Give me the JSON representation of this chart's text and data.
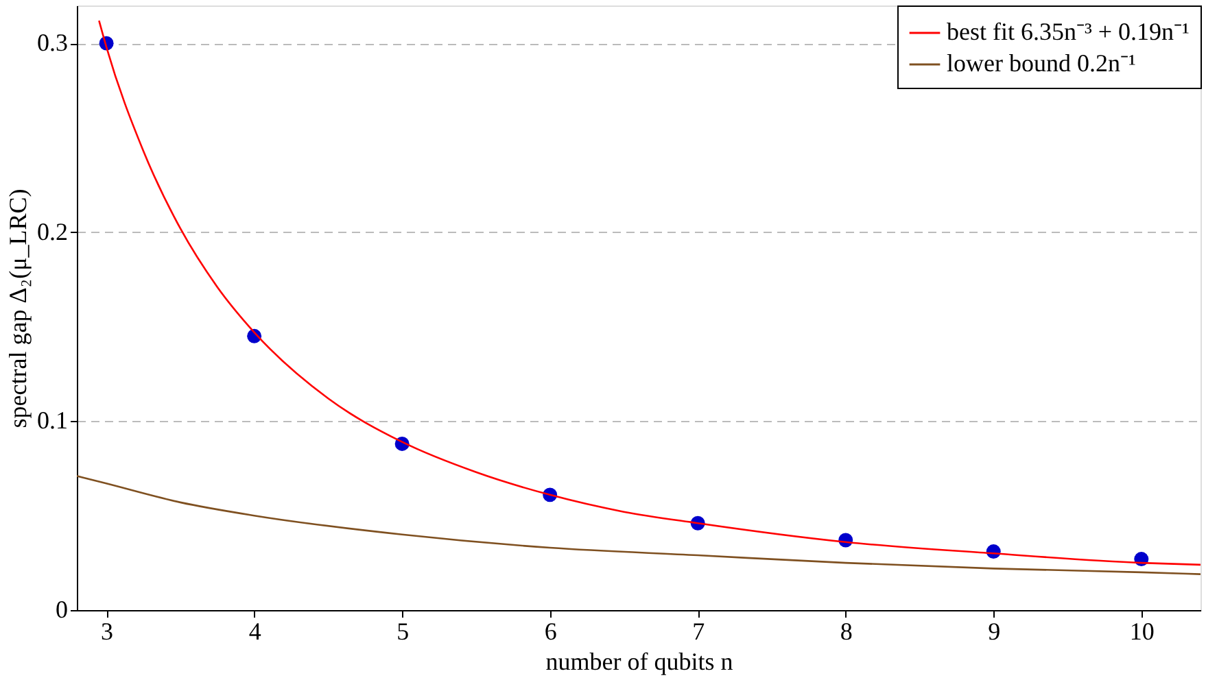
{
  "chart_data": {
    "type": "line",
    "xlabel": "number of qubits n",
    "ylabel": "spectral gap Δ₂(μ_LRC)",
    "xlim": [
      2.8,
      10.4
    ],
    "ylim": [
      0,
      0.32
    ],
    "xticks": [
      3,
      4,
      5,
      6,
      7,
      8,
      9,
      10
    ],
    "yticks": [
      0,
      0.1,
      0.2,
      0.3
    ],
    "grid": "y",
    "legend": "top right",
    "series": [
      {
        "type": "scatter",
        "marker": "circle",
        "color": "#0000cc",
        "x": [
          3,
          4,
          5,
          6,
          7,
          8,
          9,
          10
        ],
        "values": [
          0.3,
          0.145,
          0.088,
          0.061,
          0.046,
          0.037,
          0.031,
          0.027
        ]
      },
      {
        "name": "best fit 6.35n⁻³ + 0.19n⁻¹",
        "color": "#ff0000",
        "x": [
          2.95,
          3,
          3.25,
          3.5,
          3.75,
          4,
          4.5,
          5,
          5.5,
          6,
          6.5,
          7,
          8,
          9,
          10,
          10.4
        ],
        "values": [
          0.312,
          0.298,
          0.243,
          0.202,
          0.171,
          0.147,
          0.112,
          0.089,
          0.073,
          0.061,
          0.052,
          0.046,
          0.036,
          0.03,
          0.025,
          0.024
        ]
      },
      {
        "name": "lower bound 0.2n⁻¹",
        "color": "#7f5020",
        "x": [
          2.8,
          3,
          3.5,
          4,
          5,
          6,
          7,
          8,
          9,
          10,
          10.4
        ],
        "values": [
          0.071,
          0.067,
          0.057,
          0.05,
          0.04,
          0.033,
          0.029,
          0.025,
          0.022,
          0.02,
          0.019
        ]
      }
    ]
  }
}
